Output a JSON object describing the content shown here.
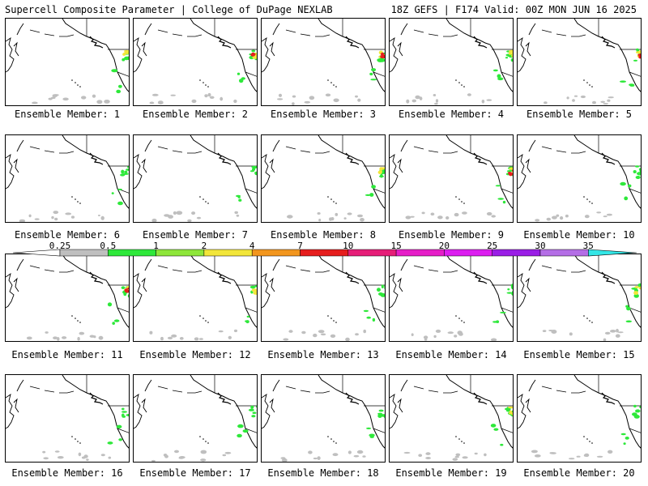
{
  "header": {
    "left": "Supercell Composite Parameter | College of DuPage NEXLAB",
    "right": "18Z GEFS | F174 Valid: 00Z MON JUN 16 2025"
  },
  "colorbar": {
    "labels": [
      "0.25",
      "0.5",
      "1",
      "2",
      "4",
      "7",
      "10",
      "15",
      "20",
      "25",
      "30",
      "35"
    ],
    "colors": [
      "#ffffff",
      "#bfbfbf",
      "#2ee83a",
      "#8ee63a",
      "#f2e63a",
      "#f2961e",
      "#e61e1e",
      "#e61e78",
      "#e61ec8",
      "#dc1ef0",
      "#9a1ee6",
      "#b46ee6",
      "#33e6e6"
    ]
  },
  "members": [
    {
      "caption": "Ensemble Member: 1",
      "scp": 2
    },
    {
      "caption": "Ensemble Member: 2",
      "scp": 3
    },
    {
      "caption": "Ensemble Member: 3",
      "scp": 3
    },
    {
      "caption": "Ensemble Member: 4",
      "scp": 2
    },
    {
      "caption": "Ensemble Member: 5",
      "scp": 3
    },
    {
      "caption": "Ensemble Member: 6",
      "scp": 1
    },
    {
      "caption": "Ensemble Member: 7",
      "scp": 1
    },
    {
      "caption": "Ensemble Member: 8",
      "scp": 2
    },
    {
      "caption": "Ensemble Member: 9",
      "scp": 3
    },
    {
      "caption": "Ensemble Member: 10",
      "scp": 0
    },
    {
      "caption": "Ensemble Member: 11",
      "scp": 3
    },
    {
      "caption": "Ensemble Member: 12",
      "scp": 2
    },
    {
      "caption": "Ensemble Member: 13",
      "scp": 1
    },
    {
      "caption": "Ensemble Member: 14",
      "scp": 1
    },
    {
      "caption": "Ensemble Member: 15",
      "scp": 2
    },
    {
      "caption": "Ensemble Member: 16",
      "scp": 1
    },
    {
      "caption": "Ensemble Member: 17",
      "scp": 1
    },
    {
      "caption": "Ensemble Member: 18",
      "scp": 1
    },
    {
      "caption": "Ensemble Member: 19",
      "scp": 2
    },
    {
      "caption": "Ensemble Member: 20",
      "scp": 1
    }
  ]
}
